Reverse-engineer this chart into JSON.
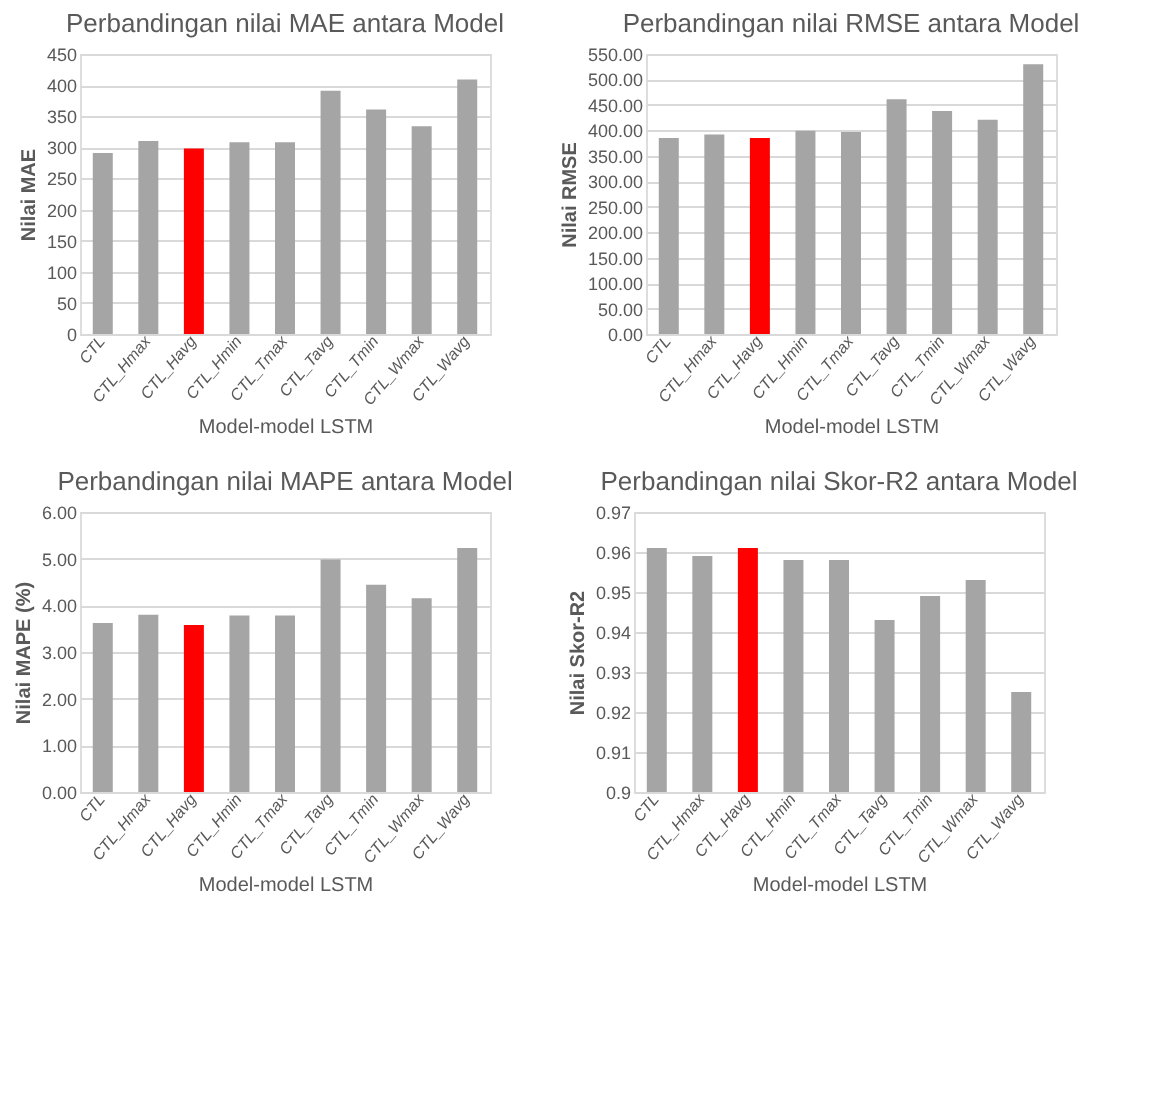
{
  "chart_data": [
    {
      "type": "bar",
      "title": "Perbandingan nilai MAE antara Model",
      "xlabel": "Model-model LSTM",
      "ylabel": "Nilai MAE",
      "categories": [
        "CTL",
        "CTL_Hmax",
        "CTL_Havg",
        "CTL_Hmin",
        "CTL_Tmax",
        "CTL_Tavg",
        "CTL_Tmin",
        "CTL_Wmax",
        "CTL_Wavg"
      ],
      "values": [
        291,
        310,
        298,
        308,
        308,
        391,
        361,
        334,
        409
      ],
      "colors": [
        "#a5a5a5",
        "#a5a5a5",
        "#ff0000",
        "#a5a5a5",
        "#a5a5a5",
        "#a5a5a5",
        "#a5a5a5",
        "#a5a5a5",
        "#a5a5a5"
      ],
      "ylim": [
        0,
        450
      ],
      "yticks": [
        0,
        50,
        100,
        150,
        200,
        250,
        300,
        350,
        400,
        450
      ],
      "grid": "y"
    },
    {
      "type": "bar",
      "title": "Perbandingan nilai RMSE antara Model",
      "xlabel": "Model-model LSTM",
      "ylabel": "Nilai RMSE",
      "categories": [
        "CTL",
        "CTL_Hmax",
        "CTL_Havg",
        "CTL_Hmin",
        "CTL_Tmax",
        "CTL_Tavg",
        "CTL_Tmin",
        "CTL_Wmax",
        "CTL_Wavg"
      ],
      "values": [
        385,
        392,
        385,
        399,
        397,
        461,
        438,
        421,
        530
      ],
      "colors": [
        "#a5a5a5",
        "#a5a5a5",
        "#ff0000",
        "#a5a5a5",
        "#a5a5a5",
        "#a5a5a5",
        "#a5a5a5",
        "#a5a5a5",
        "#a5a5a5"
      ],
      "ylim": [
        0,
        550
      ],
      "yticks": [
        {
          "value": 0,
          "label": "0.00"
        },
        {
          "value": 50,
          "label": "50.00"
        },
        {
          "value": 100,
          "label": "100.00"
        },
        {
          "value": 150,
          "label": "150.00"
        },
        {
          "value": 200,
          "label": "200.00"
        },
        {
          "value": 250,
          "label": "250.00"
        },
        {
          "value": 300,
          "label": "300.00"
        },
        {
          "value": 350,
          "label": "350.00"
        },
        {
          "value": 400,
          "label": "400.00"
        },
        {
          "value": 450,
          "label": "450.00"
        },
        {
          "value": 500,
          "label": "500.00"
        },
        {
          "value": 550,
          "label": "550.00"
        }
      ],
      "grid": "y"
    },
    {
      "type": "bar",
      "title": "Perbandingan nilai MAPE antara Model",
      "xlabel": "Model-model LSTM",
      "ylabel": "Nilai MAPE (%)",
      "categories": [
        "CTL",
        "CTL_Hmax",
        "CTL_Havg",
        "CTL_Hmin",
        "CTL_Tmax",
        "CTL_Tavg",
        "CTL_Tmin",
        "CTL_Wmax",
        "CTL_Wavg"
      ],
      "values": [
        3.62,
        3.8,
        3.58,
        3.78,
        3.78,
        4.98,
        4.44,
        4.15,
        5.23
      ],
      "colors": [
        "#a5a5a5",
        "#a5a5a5",
        "#ff0000",
        "#a5a5a5",
        "#a5a5a5",
        "#a5a5a5",
        "#a5a5a5",
        "#a5a5a5",
        "#a5a5a5"
      ],
      "ylim": [
        0,
        6
      ],
      "yticks": [
        {
          "value": 0,
          "label": "0.00"
        },
        {
          "value": 1,
          "label": "1.00"
        },
        {
          "value": 2,
          "label": "2.00"
        },
        {
          "value": 3,
          "label": "3.00"
        },
        {
          "value": 4,
          "label": "4.00"
        },
        {
          "value": 5,
          "label": "5.00"
        },
        {
          "value": 6,
          "label": "6.00"
        }
      ],
      "grid": "y"
    },
    {
      "type": "bar",
      "title": "Perbandingan nilai Skor-R2 antara Model",
      "xlabel": "Model-model LSTM",
      "ylabel": "Nilai Skor-R2",
      "categories": [
        "CTL",
        "CTL_Hmax",
        "CTL_Havg",
        "CTL_Hmin",
        "CTL_Tmax",
        "CTL_Tavg",
        "CTL_Tmin",
        "CTL_Wmax",
        "CTL_Wavg"
      ],
      "values": [
        0.961,
        0.959,
        0.961,
        0.958,
        0.958,
        0.943,
        0.949,
        0.953,
        0.925
      ],
      "colors": [
        "#a5a5a5",
        "#a5a5a5",
        "#ff0000",
        "#a5a5a5",
        "#a5a5a5",
        "#a5a5a5",
        "#a5a5a5",
        "#a5a5a5",
        "#a5a5a5"
      ],
      "ylim": [
        0.9,
        0.97
      ],
      "yticks": [
        0.9,
        0.91,
        0.92,
        0.93,
        0.94,
        0.95,
        0.96,
        0.97
      ],
      "grid": "y"
    }
  ]
}
